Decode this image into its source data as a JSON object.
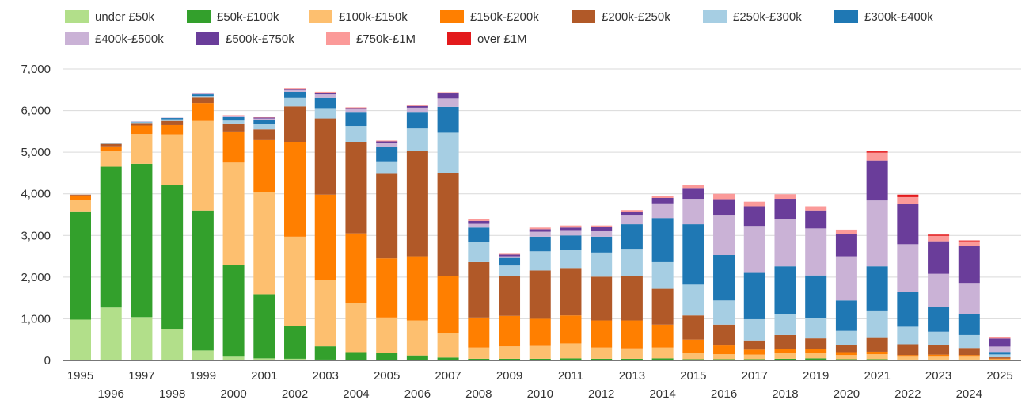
{
  "chart_data": {
    "type": "bar",
    "stacked": true,
    "title": "",
    "xlabel": "",
    "ylabel": "",
    "ylim": [
      0,
      7000
    ],
    "yticks": [
      0,
      1000,
      2000,
      3000,
      4000,
      5000,
      6000,
      7000
    ],
    "ytick_labels": [
      "0",
      "1,000",
      "2,000",
      "3,000",
      "4,000",
      "5,000",
      "6,000",
      "7,000"
    ],
    "grid": true,
    "legend_position": "top-left",
    "categories": [
      "1995",
      "1996",
      "1997",
      "1998",
      "1999",
      "2000",
      "2001",
      "2002",
      "2003",
      "2004",
      "2005",
      "2006",
      "2007",
      "2008",
      "2009",
      "2010",
      "2011",
      "2012",
      "2013",
      "2014",
      "2015",
      "2016",
      "2017",
      "2018",
      "2019",
      "2020",
      "2021",
      "2022",
      "2023",
      "2024",
      "2025"
    ],
    "series": [
      {
        "name": "under £50k",
        "color": "#b2df8a",
        "values": [
          980,
          1270,
          1040,
          760,
          240,
          90,
          50,
          40,
          20,
          10,
          10,
          10,
          10,
          10,
          10,
          10,
          10,
          10,
          10,
          10,
          10,
          10,
          10,
          10,
          10,
          10,
          10,
          10,
          10,
          10,
          5
        ]
      },
      {
        "name": "£50k-£100k",
        "color": "#33a02c",
        "values": [
          2600,
          3380,
          3680,
          3450,
          3360,
          2200,
          1540,
          780,
          320,
          190,
          170,
          110,
          60,
          30,
          30,
          30,
          40,
          30,
          30,
          40,
          20,
          20,
          20,
          30,
          40,
          20,
          20,
          10,
          10,
          10,
          5
        ]
      },
      {
        "name": "£100k-£150k",
        "color": "#fdbf6f",
        "values": [
          280,
          390,
          720,
          1220,
          2150,
          2460,
          2450,
          2150,
          1590,
          1180,
          850,
          840,
          580,
          270,
          300,
          310,
          360,
          270,
          250,
          260,
          160,
          120,
          110,
          140,
          130,
          100,
          120,
          70,
          70,
          70,
          20
        ]
      },
      {
        "name": "£150k-£200k",
        "color": "#ff7f00",
        "values": [
          100,
          100,
          200,
          220,
          430,
          730,
          1250,
          2280,
          2050,
          1670,
          1420,
          1540,
          1380,
          720,
          730,
          650,
          670,
          650,
          670,
          550,
          310,
          210,
          120,
          100,
          90,
          70,
          60,
          40,
          50,
          40,
          15
        ]
      },
      {
        "name": "£200k-£250k",
        "color": "#b15928",
        "values": [
          20,
          60,
          60,
          100,
          130,
          210,
          260,
          850,
          1830,
          2200,
          2030,
          2540,
          2470,
          1330,
          960,
          1160,
          1140,
          1050,
          1060,
          860,
          580,
          500,
          220,
          330,
          260,
          180,
          330,
          260,
          230,
          170,
          30
        ]
      },
      {
        "name": "£250k-£300k",
        "color": "#a6cee3",
        "values": [
          0,
          20,
          20,
          40,
          40,
          70,
          120,
          200,
          250,
          380,
          300,
          530,
          970,
          480,
          250,
          460,
          430,
          580,
          660,
          640,
          740,
          580,
          510,
          500,
          480,
          330,
          660,
          420,
          320,
          310,
          70
        ]
      },
      {
        "name": "£300k-£400k",
        "color": "#1f78b4",
        "values": [
          0,
          10,
          10,
          30,
          40,
          80,
          110,
          150,
          240,
          320,
          350,
          380,
          620,
          350,
          180,
          350,
          350,
          380,
          590,
          1060,
          1450,
          1090,
          1130,
          1150,
          1030,
          730,
          1060,
          830,
          590,
          500,
          60
        ]
      },
      {
        "name": "£400k-£500k",
        "color": "#cab2d6",
        "values": [
          0,
          0,
          10,
          10,
          20,
          30,
          30,
          40,
          90,
          90,
          100,
          120,
          200,
          90,
          40,
          120,
          130,
          150,
          210,
          350,
          610,
          950,
          1110,
          1140,
          1130,
          1060,
          1580,
          1150,
          800,
          750,
          130
        ]
      },
      {
        "name": "£500k-£750k",
        "color": "#6a3d9a",
        "values": [
          0,
          0,
          0,
          0,
          10,
          10,
          20,
          30,
          40,
          20,
          30,
          40,
          120,
          70,
          40,
          60,
          60,
          80,
          80,
          130,
          260,
          390,
          470,
          480,
          430,
          540,
          960,
          960,
          780,
          880,
          190
        ]
      },
      {
        "name": "£750k-£1M",
        "color": "#fb9a99",
        "values": [
          0,
          0,
          0,
          0,
          10,
          10,
          10,
          20,
          20,
          20,
          20,
          30,
          30,
          40,
          20,
          40,
          50,
          40,
          50,
          40,
          80,
          130,
          110,
          110,
          100,
          100,
          190,
          170,
          130,
          120,
          30
        ]
      },
      {
        "name": "over £1M",
        "color": "#e31a1c",
        "values": [
          0,
          0,
          0,
          0,
          0,
          0,
          0,
          0,
          0,
          0,
          0,
          0,
          0,
          0,
          0,
          0,
          0,
          0,
          0,
          0,
          0,
          0,
          0,
          0,
          0,
          0,
          30,
          60,
          30,
          20,
          5
        ]
      }
    ]
  }
}
